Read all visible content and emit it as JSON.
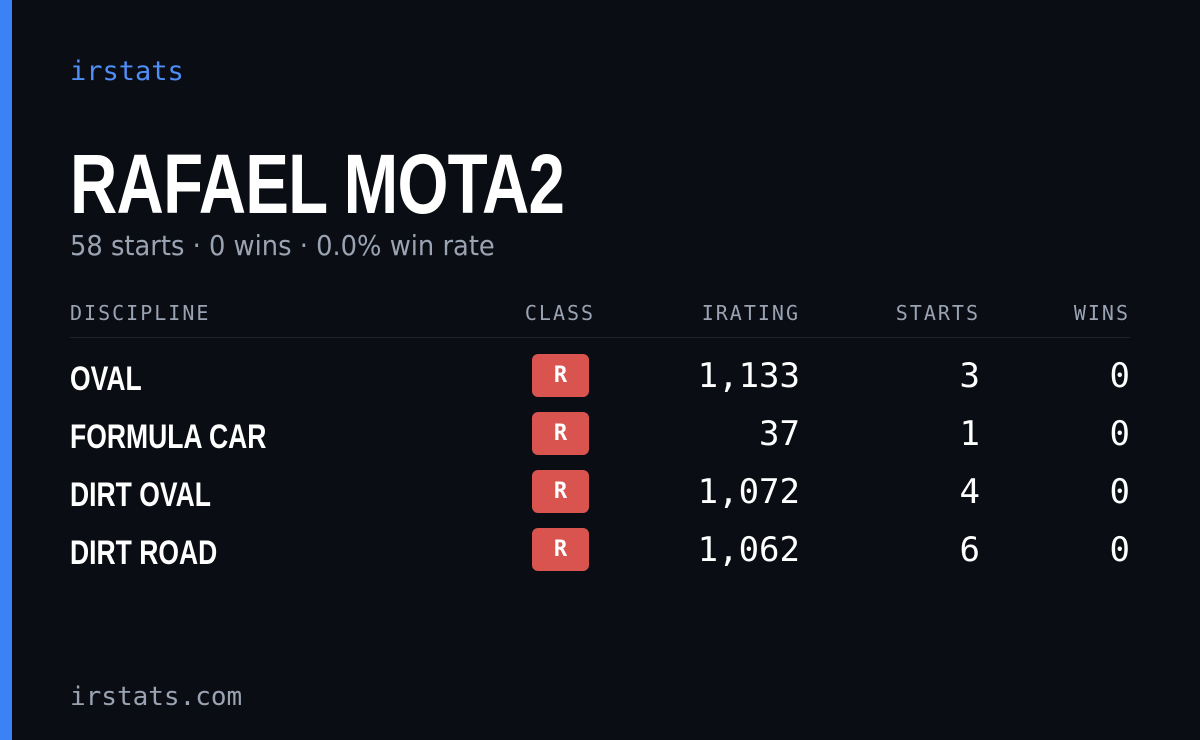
{
  "brand": "irstats",
  "name": "RAFAEL MOTA2",
  "summary": "58 starts · 0 wins · 0.0% win rate",
  "table": {
    "headers": [
      "DISCIPLINE",
      "CLASS",
      "IRATING",
      "STARTS",
      "WINS"
    ],
    "rows": [
      [
        "OVAL",
        "R",
        "1,133",
        "3",
        "0"
      ],
      [
        "FORMULA CAR",
        "R",
        "37",
        "1",
        "0"
      ],
      [
        "DIRT OVAL",
        "R",
        "1,072",
        "4",
        "0"
      ],
      [
        "DIRT ROAD",
        "R",
        "1,062",
        "6",
        "0"
      ]
    ]
  },
  "footer": "irstats.com"
}
